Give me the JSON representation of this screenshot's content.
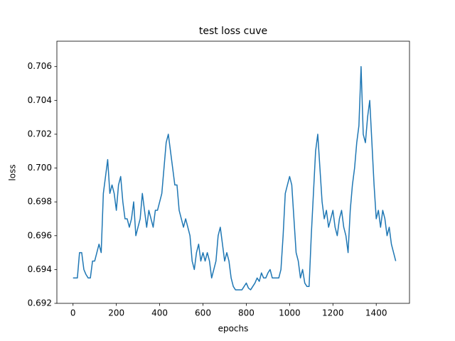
{
  "chart_data": {
    "type": "line",
    "title": "test loss cuve",
    "x_label": "epochs",
    "y_label": "loss",
    "x": [
      0,
      10,
      20,
      30,
      40,
      50,
      60,
      70,
      80,
      90,
      100,
      110,
      120,
      130,
      140,
      150,
      160,
      170,
      180,
      190,
      200,
      210,
      220,
      230,
      240,
      250,
      260,
      270,
      280,
      290,
      300,
      310,
      320,
      330,
      340,
      350,
      360,
      370,
      380,
      390,
      400,
      410,
      420,
      430,
      440,
      450,
      460,
      470,
      480,
      490,
      500,
      510,
      520,
      530,
      540,
      550,
      560,
      570,
      580,
      590,
      600,
      610,
      620,
      630,
      640,
      650,
      660,
      670,
      680,
      690,
      700,
      710,
      720,
      730,
      740,
      750,
      760,
      770,
      780,
      790,
      800,
      810,
      820,
      830,
      840,
      850,
      860,
      870,
      880,
      890,
      900,
      910,
      920,
      930,
      940,
      950,
      960,
      970,
      980,
      990,
      1000,
      1010,
      1020,
      1030,
      1040,
      1050,
      1060,
      1070,
      1080,
      1090,
      1100,
      1110,
      1120,
      1130,
      1140,
      1150,
      1160,
      1170,
      1180,
      1190,
      1200,
      1210,
      1220,
      1230,
      1240,
      1250,
      1260,
      1270,
      1280,
      1290,
      1300,
      1310,
      1320,
      1330,
      1340,
      1350,
      1360,
      1370,
      1380,
      1390,
      1400,
      1410,
      1420,
      1430,
      1440,
      1450,
      1460,
      1470,
      1480,
      1490
    ],
    "series": [
      {
        "color": "#1f77b4",
        "values": [
          0.6935,
          0.6935,
          0.6935,
          0.695,
          0.695,
          0.694,
          0.6937,
          0.6935,
          0.6935,
          0.6945,
          0.6945,
          0.695,
          0.6955,
          0.695,
          0.6985,
          0.6995,
          0.7005,
          0.6985,
          0.699,
          0.6985,
          0.6975,
          0.699,
          0.6995,
          0.698,
          0.697,
          0.697,
          0.6965,
          0.697,
          0.698,
          0.696,
          0.6965,
          0.697,
          0.6985,
          0.6975,
          0.6965,
          0.6975,
          0.697,
          0.6965,
          0.6975,
          0.6975,
          0.698,
          0.6985,
          0.7,
          0.7015,
          0.702,
          0.701,
          0.7,
          0.699,
          0.699,
          0.6975,
          0.697,
          0.6965,
          0.697,
          0.6965,
          0.696,
          0.6945,
          0.694,
          0.695,
          0.6955,
          0.6945,
          0.695,
          0.6945,
          0.695,
          0.6945,
          0.6935,
          0.694,
          0.6945,
          0.696,
          0.6965,
          0.6955,
          0.6945,
          0.695,
          0.6945,
          0.6935,
          0.693,
          0.6928,
          0.6928,
          0.6928,
          0.6928,
          0.693,
          0.6932,
          0.6929,
          0.6928,
          0.693,
          0.6932,
          0.6935,
          0.6933,
          0.6938,
          0.6935,
          0.6935,
          0.6938,
          0.694,
          0.6935,
          0.6935,
          0.6935,
          0.6935,
          0.694,
          0.696,
          0.6985,
          0.699,
          0.6995,
          0.699,
          0.697,
          0.695,
          0.6945,
          0.6935,
          0.694,
          0.6932,
          0.693,
          0.693,
          0.696,
          0.6985,
          0.701,
          0.702,
          0.7,
          0.698,
          0.697,
          0.6975,
          0.6965,
          0.697,
          0.6975,
          0.6965,
          0.696,
          0.697,
          0.6975,
          0.6965,
          0.696,
          0.695,
          0.6975,
          0.699,
          0.7,
          0.7015,
          0.7025,
          0.706,
          0.702,
          0.7015,
          0.703,
          0.704,
          0.7015,
          0.699,
          0.697,
          0.6975,
          0.6965,
          0.6975,
          0.697,
          0.696,
          0.6965,
          0.6955,
          0.695,
          0.6945
        ]
      }
    ],
    "xlim": [
      -74.6,
      1553.6
    ],
    "ylim": [
      0.692,
      0.7075
    ],
    "xticks": [
      0,
      200,
      400,
      600,
      800,
      1000,
      1200,
      1400
    ],
    "yticks": [
      0.692,
      0.694,
      0.696,
      0.698,
      {
        "value": 0.7,
        "label": "0.700"
      },
      0.702,
      0.704,
      0.706
    ],
    "grid": false
  }
}
